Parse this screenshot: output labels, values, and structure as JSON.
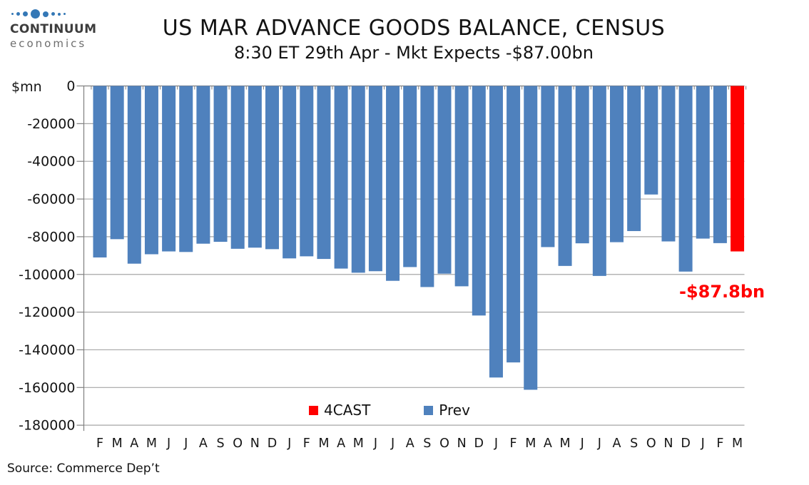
{
  "logo": {
    "name": "CONTINUUM",
    "tagline": "economics"
  },
  "header": {
    "title": "US MAR ADVANCE GOODS BALANCE, CENSUS",
    "subtitle": "8:30 ET 29th Apr - Mkt Expects -$87.00bn"
  },
  "legend": {
    "forecast_label": "4CAST",
    "prev_label": "Prev"
  },
  "annotation": {
    "text": "-$87.8bn",
    "color": "#ff0000"
  },
  "footer": {
    "source": "Source: Commerce Dep’t"
  },
  "chart_data": {
    "type": "bar",
    "title": "US MAR ADVANCE GOODS BALANCE, CENSUS",
    "subtitle": "8:30 ET 29th Apr - Mkt Expects -$87.00bn",
    "y_unit": "$mn",
    "xlabel": "",
    "ylabel": "$mn",
    "ylim": [
      -180000,
      0
    ],
    "ytick_step": 20000,
    "grid": true,
    "legend_position": "bottom-center",
    "categories": [
      "F",
      "M",
      "A",
      "M",
      "J",
      "J",
      "A",
      "S",
      "O",
      "N",
      "D",
      "J",
      "F",
      "M",
      "A",
      "M",
      "J",
      "J",
      "A",
      "S",
      "O",
      "N",
      "D",
      "J",
      "F",
      "M",
      "A",
      "M",
      "J",
      "J",
      "A",
      "S",
      "O",
      "N",
      "D",
      "J",
      "F",
      "M"
    ],
    "values": [
      -91000,
      -81300,
      -94300,
      -89300,
      -87800,
      -88100,
      -83700,
      -82700,
      -86400,
      -85800,
      -86600,
      -91500,
      -90400,
      -91800,
      -96900,
      -99100,
      -98300,
      -103400,
      -96100,
      -106700,
      -99600,
      -106300,
      -121800,
      -154700,
      -146700,
      -161200,
      -85500,
      -95500,
      -83500,
      -100800,
      -82900,
      -77000,
      -57600,
      -82500,
      -98500,
      -81000,
      -83400,
      -87800
    ],
    "series": [
      {
        "name": "Prev",
        "color": "#4f81bd",
        "note": "all bars except last"
      },
      {
        "name": "4CAST",
        "color": "#ff0000",
        "note": "last bar, forecast -87800"
      }
    ],
    "forecast_index": 37,
    "forecast_value_label": "-$87.8bn"
  }
}
